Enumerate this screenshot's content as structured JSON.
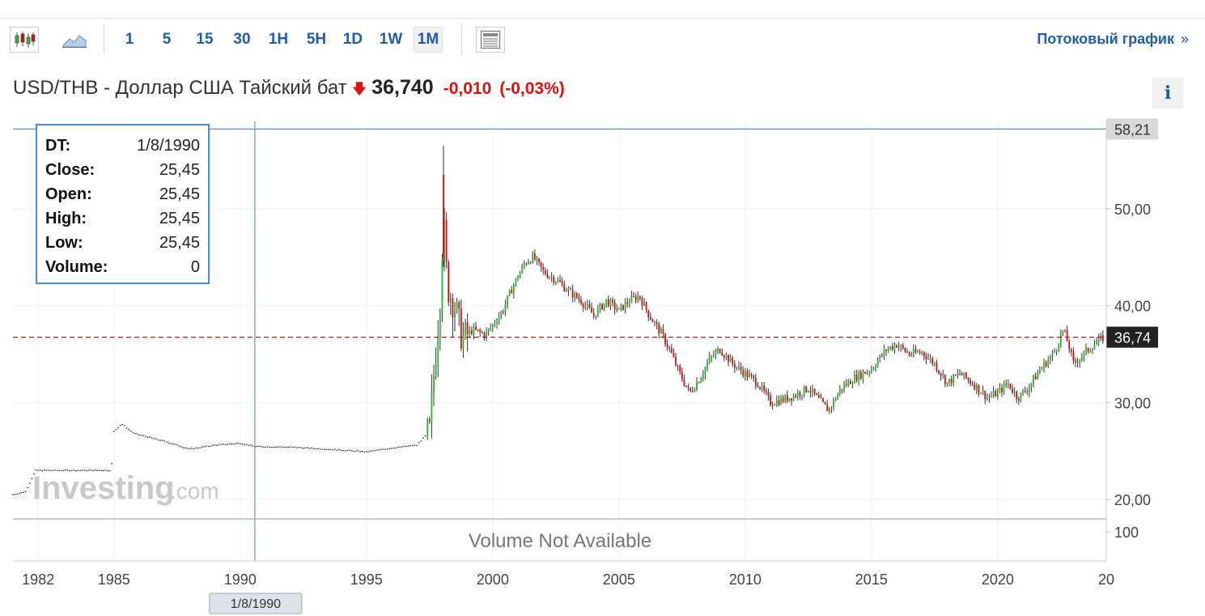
{
  "toolbar": {
    "intervals": [
      {
        "label": "1"
      },
      {
        "label": "5"
      },
      {
        "label": "15"
      },
      {
        "label": "30"
      },
      {
        "label": "1H"
      },
      {
        "label": "5H"
      },
      {
        "label": "1D"
      },
      {
        "label": "1W"
      },
      {
        "label": "1M",
        "active": true
      }
    ],
    "stream_label": "Потоковый график",
    "stream_arrow": "»"
  },
  "header": {
    "title": "USD/THB - Доллар США Тайский бат",
    "arrow": "🡇",
    "price": "36,740",
    "change": "-0,010",
    "change_pct": "(-0,03%)",
    "info": "i"
  },
  "tooltip": {
    "rows": [
      {
        "k": "DT:",
        "v": "1/8/1990"
      },
      {
        "k": "Close:",
        "v": "25,45"
      },
      {
        "k": "Open:",
        "v": "25,45"
      },
      {
        "k": "High:",
        "v": "25,45"
      },
      {
        "k": "Low:",
        "v": "25,45"
      },
      {
        "k": "Volume:",
        "v": "0"
      }
    ]
  },
  "chart_data": {
    "type": "candlestick",
    "ylim": [
      18,
      59
    ],
    "xlim": [
      1981,
      2024.3
    ],
    "y_ticks": [
      "50,00",
      "40,00",
      "30,00",
      "20,00"
    ],
    "y_tick_values": [
      50,
      40,
      30,
      20
    ],
    "x_ticks": [
      "1982",
      "1985",
      "1990",
      "1995",
      "2000",
      "2005",
      "2010",
      "2015",
      "2020",
      "20"
    ],
    "x_tick_values": [
      1982,
      1985,
      1990,
      1995,
      2000,
      2005,
      2010,
      2015,
      2020,
      2024.3
    ],
    "crosshair_value": 58.21,
    "crosshair_label": "58,21",
    "crosshair_x": 1990.58,
    "crosshair_date_label": "1/8/1990",
    "last_price": 36.74,
    "last_price_label": "36,74",
    "volume_label": "Volume Not Available",
    "volume_tick": "100",
    "watermark_main": "Investing",
    "watermark_suffix": ".com",
    "colors": {
      "up": "#2db32d",
      "down": "#cc1111",
      "pre": "#333333",
      "crosshair": "#4f86c6",
      "last": "#8b1a1a"
    },
    "series_key_points": [
      [
        1981.0,
        20.5
      ],
      [
        1981.5,
        20.8
      ],
      [
        1981.9,
        23.0
      ],
      [
        1984.9,
        23.0
      ],
      [
        1985.0,
        27.0
      ],
      [
        1985.3,
        27.8
      ],
      [
        1985.8,
        26.8
      ],
      [
        1987.0,
        26.0
      ],
      [
        1988.0,
        25.2
      ],
      [
        1989.0,
        25.6
      ],
      [
        1990.0,
        25.8
      ],
      [
        1990.6,
        25.45
      ],
      [
        1992.0,
        25.4
      ],
      [
        1994.0,
        25.1
      ],
      [
        1995.0,
        24.9
      ],
      [
        1996.0,
        25.3
      ],
      [
        1997.0,
        25.6
      ],
      [
        1997.5,
        27.0
      ],
      [
        1997.7,
        34.0
      ],
      [
        1997.9,
        40.0
      ],
      [
        1998.05,
        49.0
      ],
      [
        1998.2,
        42.0
      ],
      [
        1998.5,
        40.0
      ],
      [
        1998.8,
        36.5
      ],
      [
        1999.2,
        37.5
      ],
      [
        1999.7,
        37.0
      ],
      [
        2000.0,
        38.0
      ],
      [
        2000.4,
        39.5
      ],
      [
        2000.8,
        42.0
      ],
      [
        2001.3,
        44.5
      ],
      [
        2001.6,
        45.0
      ],
      [
        2002.0,
        43.5
      ],
      [
        2002.6,
        42.5
      ],
      [
        2003.0,
        41.5
      ],
      [
        2003.5,
        40.5
      ],
      [
        2004.0,
        39.0
      ],
      [
        2004.5,
        40.5
      ],
      [
        2005.0,
        39.5
      ],
      [
        2005.4,
        40.5
      ],
      [
        2005.8,
        41.0
      ],
      [
        2006.2,
        39.0
      ],
      [
        2006.7,
        37.0
      ],
      [
        2007.0,
        35.5
      ],
      [
        2007.4,
        33.0
      ],
      [
        2007.8,
        31.0
      ],
      [
        2008.2,
        32.5
      ],
      [
        2008.6,
        34.5
      ],
      [
        2009.0,
        35.5
      ],
      [
        2009.5,
        34.0
      ],
      [
        2010.0,
        33.0
      ],
      [
        2010.5,
        32.0
      ],
      [
        2011.0,
        30.0
      ],
      [
        2011.5,
        30.3
      ],
      [
        2012.0,
        30.8
      ],
      [
        2012.5,
        31.5
      ],
      [
        2013.0,
        30.0
      ],
      [
        2013.3,
        29.2
      ],
      [
        2013.8,
        31.5
      ],
      [
        2014.3,
        32.5
      ],
      [
        2015.0,
        33.5
      ],
      [
        2015.6,
        35.5
      ],
      [
        2016.0,
        36.0
      ],
      [
        2016.5,
        35.0
      ],
      [
        2017.0,
        35.2
      ],
      [
        2017.5,
        34.0
      ],
      [
        2018.0,
        32.0
      ],
      [
        2018.5,
        33.0
      ],
      [
        2019.0,
        32.0
      ],
      [
        2019.6,
        30.5
      ],
      [
        2020.0,
        31.0
      ],
      [
        2020.4,
        32.0
      ],
      [
        2020.8,
        30.5
      ],
      [
        2021.2,
        31.5
      ],
      [
        2021.7,
        33.5
      ],
      [
        2022.2,
        35.0
      ],
      [
        2022.6,
        37.5
      ],
      [
        2022.8,
        36.0
      ],
      [
        2023.0,
        34.0
      ],
      [
        2023.4,
        35.0
      ],
      [
        2023.8,
        36.0
      ],
      [
        2024.2,
        36.74
      ]
    ]
  }
}
